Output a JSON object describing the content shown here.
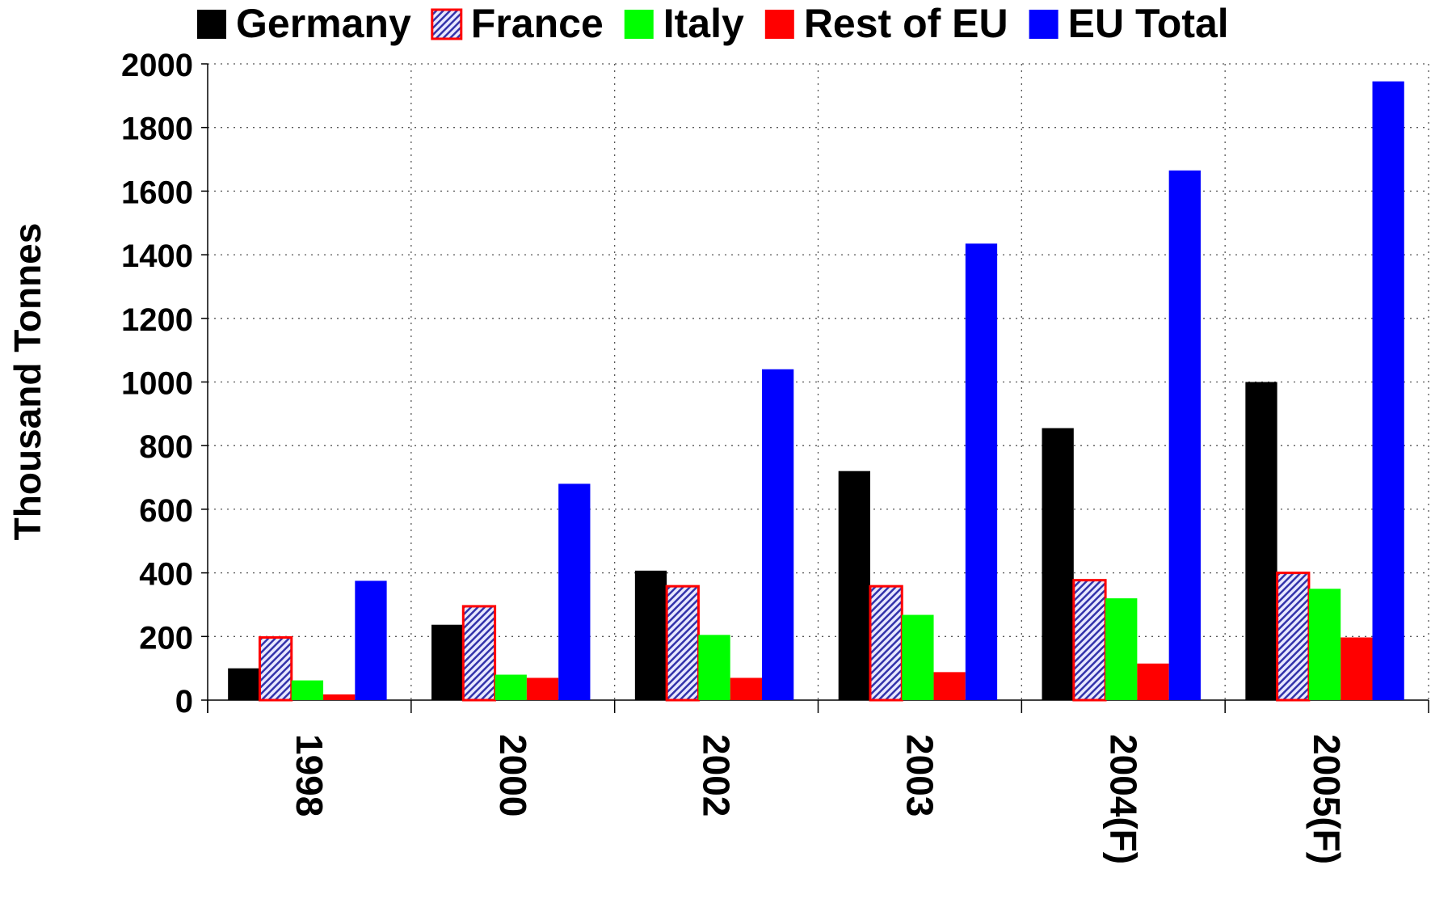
{
  "chart_data": {
    "type": "bar",
    "y_label": "Thousand Tonnes",
    "categories": [
      "1998",
      "2000",
      "2002",
      "2003",
      "2004(F)",
      "2005(F)"
    ],
    "series": [
      {
        "name": "Germany",
        "color": "#000000",
        "values": [
          100,
          237,
          407,
          720,
          855,
          1000
        ]
      },
      {
        "name": "France",
        "color": "#3333aa",
        "edgecolor": "#ff0000",
        "hatch": true,
        "values": [
          197,
          295,
          358,
          358,
          377,
          400
        ]
      },
      {
        "name": "Italy",
        "color": "#00ff00",
        "values": [
          62,
          80,
          205,
          268,
          320,
          350
        ]
      },
      {
        "name": "Rest of EU",
        "color": "#ff0000",
        "values": [
          18,
          70,
          70,
          88,
          115,
          197
        ]
      },
      {
        "name": "EU Total",
        "color": "#0000ff",
        "values": [
          375,
          680,
          1040,
          1435,
          1665,
          1945
        ]
      }
    ],
    "ylim": [
      0,
      2000
    ],
    "yticks": [
      0,
      200,
      400,
      600,
      800,
      1000,
      1200,
      1400,
      1600,
      1800,
      2000
    ],
    "grid": true,
    "legend": "top"
  }
}
